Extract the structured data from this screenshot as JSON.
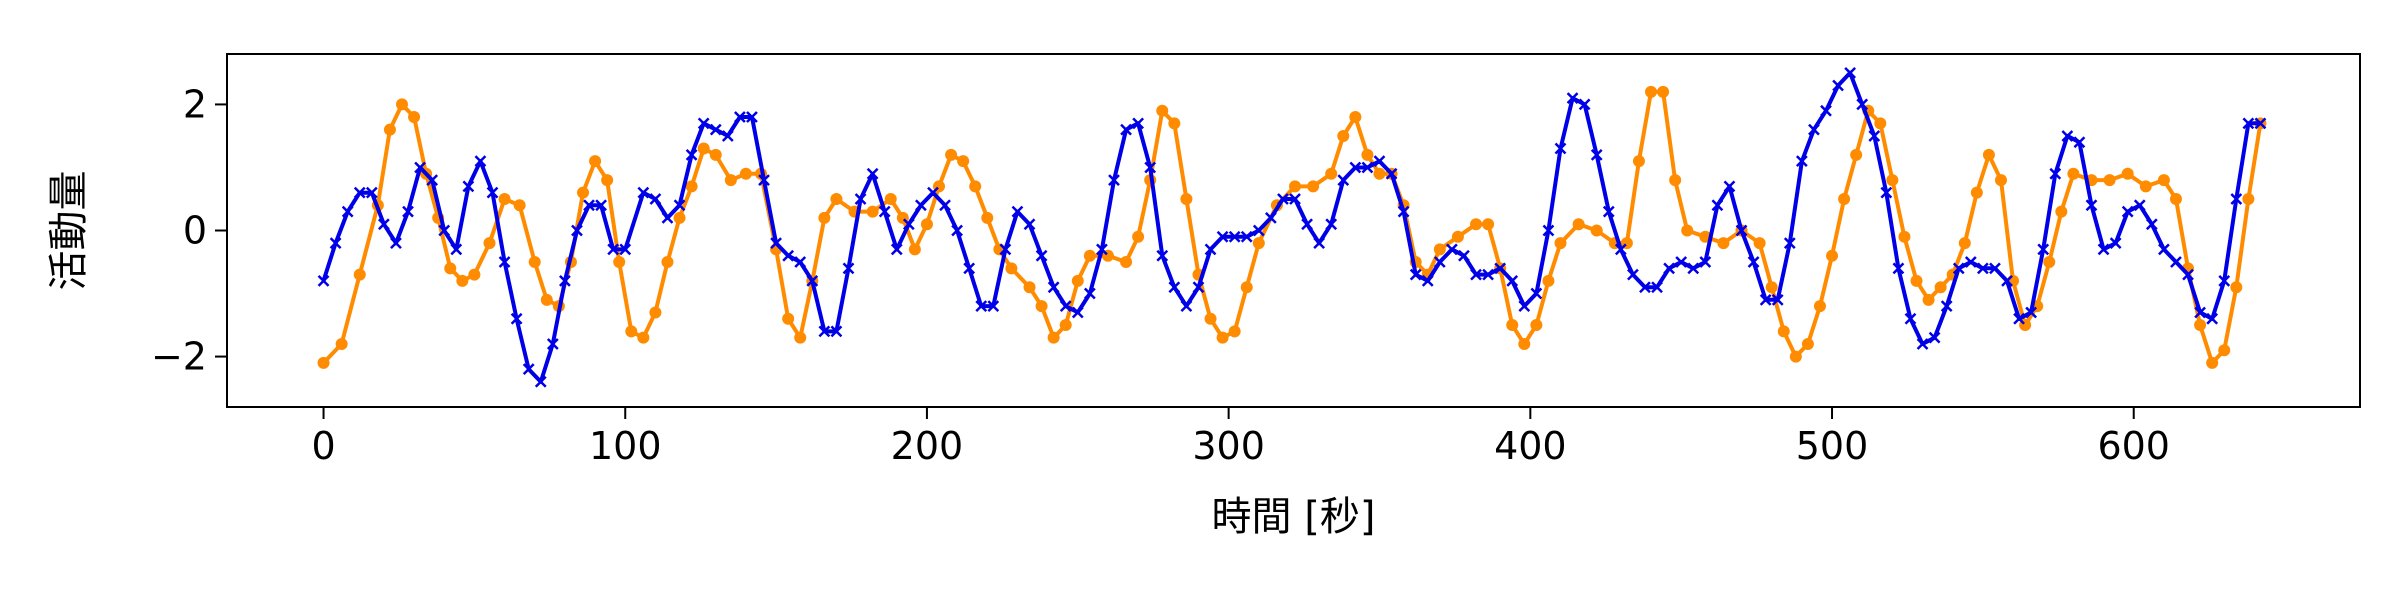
{
  "chart_data": {
    "type": "line",
    "title": "",
    "xlabel": "時間 [秒]",
    "ylabel": "活動量",
    "xlim": [
      -32,
      675
    ],
    "ylim": [
      -2.8,
      2.8
    ],
    "xticks": [
      0,
      100,
      200,
      300,
      400,
      500,
      600
    ],
    "xtick_labels": [
      "0",
      "100",
      "200",
      "300",
      "400",
      "500",
      "600"
    ],
    "yticks": [
      -2,
      0,
      2
    ],
    "ytick_labels": [
      "−2",
      "0",
      "2"
    ],
    "grid": false,
    "legend": "none",
    "series": [
      {
        "color": "#ff8c00",
        "marker": "circle",
        "points": [
          [
            0,
            -2.1
          ],
          [
            6,
            -1.8
          ],
          [
            12,
            -0.7
          ],
          [
            18,
            0.4
          ],
          [
            22,
            1.6
          ],
          [
            26,
            2.0
          ],
          [
            30,
            1.8
          ],
          [
            34,
            0.9
          ],
          [
            38,
            0.2
          ],
          [
            42,
            -0.6
          ],
          [
            46,
            -0.8
          ],
          [
            50,
            -0.7
          ],
          [
            55,
            -0.2
          ],
          [
            60,
            0.5
          ],
          [
            65,
            0.4
          ],
          [
            70,
            -0.5
          ],
          [
            74,
            -1.1
          ],
          [
            78,
            -1.2
          ],
          [
            82,
            -0.5
          ],
          [
            86,
            0.6
          ],
          [
            90,
            1.1
          ],
          [
            94,
            0.8
          ],
          [
            98,
            -0.5
          ],
          [
            102,
            -1.6
          ],
          [
            106,
            -1.7
          ],
          [
            110,
            -1.3
          ],
          [
            114,
            -0.5
          ],
          [
            118,
            0.2
          ],
          [
            122,
            0.7
          ],
          [
            126,
            1.3
          ],
          [
            130,
            1.2
          ],
          [
            135,
            0.8
          ],
          [
            140,
            0.9
          ],
          [
            145,
            0.9
          ],
          [
            150,
            -0.3
          ],
          [
            154,
            -1.4
          ],
          [
            158,
            -1.7
          ],
          [
            162,
            -0.8
          ],
          [
            166,
            0.2
          ],
          [
            170,
            0.5
          ],
          [
            176,
            0.3
          ],
          [
            182,
            0.3
          ],
          [
            188,
            0.5
          ],
          [
            192,
            0.2
          ],
          [
            196,
            -0.3
          ],
          [
            200,
            0.1
          ],
          [
            204,
            0.7
          ],
          [
            208,
            1.2
          ],
          [
            212,
            1.1
          ],
          [
            216,
            0.7
          ],
          [
            220,
            0.2
          ],
          [
            224,
            -0.3
          ],
          [
            228,
            -0.6
          ],
          [
            234,
            -0.9
          ],
          [
            238,
            -1.2
          ],
          [
            242,
            -1.7
          ],
          [
            246,
            -1.5
          ],
          [
            250,
            -0.8
          ],
          [
            254,
            -0.4
          ],
          [
            260,
            -0.4
          ],
          [
            266,
            -0.5
          ],
          [
            270,
            -0.1
          ],
          [
            274,
            0.8
          ],
          [
            278,
            1.9
          ],
          [
            282,
            1.7
          ],
          [
            286,
            0.5
          ],
          [
            290,
            -0.7
          ],
          [
            294,
            -1.4
          ],
          [
            298,
            -1.7
          ],
          [
            302,
            -1.6
          ],
          [
            306,
            -0.9
          ],
          [
            310,
            -0.2
          ],
          [
            316,
            0.4
          ],
          [
            322,
            0.7
          ],
          [
            328,
            0.7
          ],
          [
            334,
            0.9
          ],
          [
            338,
            1.5
          ],
          [
            342,
            1.8
          ],
          [
            346,
            1.2
          ],
          [
            350,
            0.9
          ],
          [
            354,
            0.9
          ],
          [
            358,
            0.4
          ],
          [
            362,
            -0.5
          ],
          [
            366,
            -0.7
          ],
          [
            370,
            -0.3
          ],
          [
            376,
            -0.1
          ],
          [
            382,
            0.1
          ],
          [
            386,
            0.1
          ],
          [
            390,
            -0.6
          ],
          [
            394,
            -1.5
          ],
          [
            398,
            -1.8
          ],
          [
            402,
            -1.5
          ],
          [
            406,
            -0.8
          ],
          [
            410,
            -0.2
          ],
          [
            416,
            0.1
          ],
          [
            422,
            0.0
          ],
          [
            428,
            -0.2
          ],
          [
            432,
            -0.2
          ],
          [
            436,
            1.1
          ],
          [
            440,
            2.2
          ],
          [
            444,
            2.2
          ],
          [
            448,
            0.8
          ],
          [
            452,
            0.0
          ],
          [
            458,
            -0.1
          ],
          [
            464,
            -0.2
          ],
          [
            470,
            0.0
          ],
          [
            476,
            -0.2
          ],
          [
            480,
            -0.9
          ],
          [
            484,
            -1.6
          ],
          [
            488,
            -2.0
          ],
          [
            492,
            -1.8
          ],
          [
            496,
            -1.2
          ],
          [
            500,
            -0.4
          ],
          [
            504,
            0.5
          ],
          [
            508,
            1.2
          ],
          [
            512,
            1.9
          ],
          [
            516,
            1.7
          ],
          [
            520,
            0.8
          ],
          [
            524,
            -0.1
          ],
          [
            528,
            -0.8
          ],
          [
            532,
            -1.1
          ],
          [
            536,
            -0.9
          ],
          [
            540,
            -0.7
          ],
          [
            544,
            -0.2
          ],
          [
            548,
            0.6
          ],
          [
            552,
            1.2
          ],
          [
            556,
            0.8
          ],
          [
            560,
            -0.8
          ],
          [
            564,
            -1.5
          ],
          [
            568,
            -1.2
          ],
          [
            572,
            -0.5
          ],
          [
            576,
            0.3
          ],
          [
            580,
            0.9
          ],
          [
            586,
            0.8
          ],
          [
            592,
            0.8
          ],
          [
            598,
            0.9
          ],
          [
            604,
            0.7
          ],
          [
            610,
            0.8
          ],
          [
            614,
            0.5
          ],
          [
            618,
            -0.6
          ],
          [
            622,
            -1.5
          ],
          [
            626,
            -2.1
          ],
          [
            630,
            -1.9
          ],
          [
            634,
            -0.9
          ],
          [
            638,
            0.5
          ],
          [
            642,
            1.7
          ]
        ]
      },
      {
        "color": "#0000e8",
        "marker": "x",
        "points": [
          [
            0,
            -0.8
          ],
          [
            4,
            -0.2
          ],
          [
            8,
            0.3
          ],
          [
            12,
            0.6
          ],
          [
            16,
            0.6
          ],
          [
            20,
            0.1
          ],
          [
            24,
            -0.2
          ],
          [
            28,
            0.3
          ],
          [
            32,
            1.0
          ],
          [
            36,
            0.8
          ],
          [
            40,
            0.0
          ],
          [
            44,
            -0.3
          ],
          [
            48,
            0.7
          ],
          [
            52,
            1.1
          ],
          [
            56,
            0.6
          ],
          [
            60,
            -0.5
          ],
          [
            64,
            -1.4
          ],
          [
            68,
            -2.2
          ],
          [
            72,
            -2.4
          ],
          [
            76,
            -1.8
          ],
          [
            80,
            -0.8
          ],
          [
            84,
            0.0
          ],
          [
            88,
            0.4
          ],
          [
            92,
            0.4
          ],
          [
            96,
            -0.3
          ],
          [
            100,
            -0.3
          ],
          [
            106,
            0.6
          ],
          [
            110,
            0.5
          ],
          [
            114,
            0.2
          ],
          [
            118,
            0.4
          ],
          [
            122,
            1.2
          ],
          [
            126,
            1.7
          ],
          [
            130,
            1.6
          ],
          [
            134,
            1.5
          ],
          [
            138,
            1.8
          ],
          [
            142,
            1.8
          ],
          [
            146,
            0.8
          ],
          [
            150,
            -0.2
          ],
          [
            154,
            -0.4
          ],
          [
            158,
            -0.5
          ],
          [
            162,
            -0.8
          ],
          [
            166,
            -1.6
          ],
          [
            170,
            -1.6
          ],
          [
            174,
            -0.6
          ],
          [
            178,
            0.5
          ],
          [
            182,
            0.9
          ],
          [
            186,
            0.3
          ],
          [
            190,
            -0.3
          ],
          [
            194,
            0.1
          ],
          [
            198,
            0.4
          ],
          [
            202,
            0.6
          ],
          [
            206,
            0.4
          ],
          [
            210,
            0.0
          ],
          [
            214,
            -0.6
          ],
          [
            218,
            -1.2
          ],
          [
            222,
            -1.2
          ],
          [
            226,
            -0.3
          ],
          [
            230,
            0.3
          ],
          [
            234,
            0.1
          ],
          [
            238,
            -0.4
          ],
          [
            242,
            -0.9
          ],
          [
            246,
            -1.2
          ],
          [
            250,
            -1.3
          ],
          [
            254,
            -1.0
          ],
          [
            258,
            -0.3
          ],
          [
            262,
            0.8
          ],
          [
            266,
            1.6
          ],
          [
            270,
            1.7
          ],
          [
            274,
            1.0
          ],
          [
            278,
            -0.4
          ],
          [
            282,
            -0.9
          ],
          [
            286,
            -1.2
          ],
          [
            290,
            -0.9
          ],
          [
            294,
            -0.3
          ],
          [
            298,
            -0.1
          ],
          [
            302,
            -0.1
          ],
          [
            306,
            -0.1
          ],
          [
            310,
            0.0
          ],
          [
            314,
            0.2
          ],
          [
            318,
            0.5
          ],
          [
            322,
            0.5
          ],
          [
            326,
            0.1
          ],
          [
            330,
            -0.2
          ],
          [
            334,
            0.1
          ],
          [
            338,
            0.8
          ],
          [
            342,
            1.0
          ],
          [
            346,
            1.0
          ],
          [
            350,
            1.1
          ],
          [
            354,
            0.9
          ],
          [
            358,
            0.3
          ],
          [
            362,
            -0.7
          ],
          [
            366,
            -0.8
          ],
          [
            370,
            -0.5
          ],
          [
            374,
            -0.3
          ],
          [
            378,
            -0.4
          ],
          [
            382,
            -0.7
          ],
          [
            386,
            -0.7
          ],
          [
            390,
            -0.6
          ],
          [
            394,
            -0.8
          ],
          [
            398,
            -1.2
          ],
          [
            402,
            -1.0
          ],
          [
            406,
            0.0
          ],
          [
            410,
            1.3
          ],
          [
            414,
            2.1
          ],
          [
            418,
            2.0
          ],
          [
            422,
            1.2
          ],
          [
            426,
            0.3
          ],
          [
            430,
            -0.3
          ],
          [
            434,
            -0.7
          ],
          [
            438,
            -0.9
          ],
          [
            442,
            -0.9
          ],
          [
            446,
            -0.6
          ],
          [
            450,
            -0.5
          ],
          [
            454,
            -0.6
          ],
          [
            458,
            -0.5
          ],
          [
            462,
            0.4
          ],
          [
            466,
            0.7
          ],
          [
            470,
            0.0
          ],
          [
            474,
            -0.5
          ],
          [
            478,
            -1.1
          ],
          [
            482,
            -1.1
          ],
          [
            486,
            -0.2
          ],
          [
            490,
            1.1
          ],
          [
            494,
            1.6
          ],
          [
            498,
            1.9
          ],
          [
            502,
            2.3
          ],
          [
            506,
            2.5
          ],
          [
            510,
            2.0
          ],
          [
            514,
            1.5
          ],
          [
            518,
            0.6
          ],
          [
            522,
            -0.6
          ],
          [
            526,
            -1.4
          ],
          [
            530,
            -1.8
          ],
          [
            534,
            -1.7
          ],
          [
            538,
            -1.2
          ],
          [
            542,
            -0.6
          ],
          [
            546,
            -0.5
          ],
          [
            550,
            -0.6
          ],
          [
            554,
            -0.6
          ],
          [
            558,
            -0.8
          ],
          [
            562,
            -1.4
          ],
          [
            566,
            -1.3
          ],
          [
            570,
            -0.3
          ],
          [
            574,
            0.9
          ],
          [
            578,
            1.5
          ],
          [
            582,
            1.4
          ],
          [
            586,
            0.4
          ],
          [
            590,
            -0.3
          ],
          [
            594,
            -0.2
          ],
          [
            598,
            0.3
          ],
          [
            602,
            0.4
          ],
          [
            606,
            0.1
          ],
          [
            610,
            -0.3
          ],
          [
            614,
            -0.5
          ],
          [
            618,
            -0.7
          ],
          [
            622,
            -1.3
          ],
          [
            626,
            -1.4
          ],
          [
            630,
            -0.8
          ],
          [
            634,
            0.5
          ],
          [
            638,
            1.7
          ],
          [
            642,
            1.7
          ]
        ]
      }
    ]
  }
}
